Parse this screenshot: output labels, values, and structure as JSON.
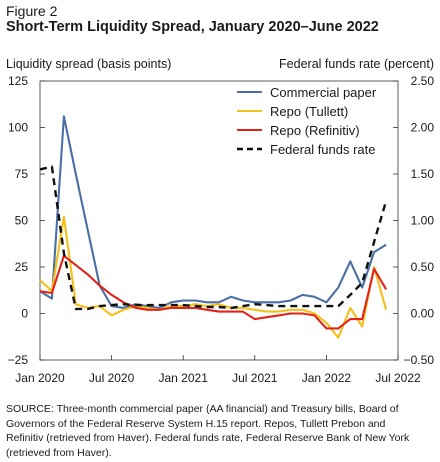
{
  "figure": {
    "label": "Figure 2",
    "title": "Short-Term Liquidity Spread, January 2020–June 2022"
  },
  "chart_data": {
    "type": "line",
    "title": "Short-Term Liquidity Spread, January 2020–June 2022",
    "ylabel": "Liquidity spread (basis points)",
    "y2label": "Federal funds rate (percent)",
    "x_ticks": [
      "Jan 2020",
      "Jul 2020",
      "Jan 2021",
      "Jul 2021",
      "Jan 2022",
      "Jul 2022"
    ],
    "y_ticks": [
      "125",
      "100",
      "75",
      "50",
      "25",
      "0",
      "−25"
    ],
    "y2_ticks": [
      "2.50",
      "2.00",
      "1.50",
      "1.00",
      "0.50",
      "0.00",
      "−0.50"
    ],
    "ylim": [
      -25,
      125
    ],
    "y2lim": [
      -0.5,
      2.5
    ],
    "xlim": [
      "2020-01",
      "2022-07"
    ],
    "legend_position": "top-right",
    "series": [
      {
        "name": "Commercial paper",
        "axis": "left",
        "color": "#4a6fa5",
        "style": "solid",
        "x": [
          "2020-01",
          "2020-02",
          "2020-03",
          "2020-04",
          "2020-05",
          "2020-06",
          "2020-07",
          "2020-08",
          "2020-09",
          "2020-10",
          "2020-11",
          "2020-12",
          "2021-01",
          "2021-02",
          "2021-03",
          "2021-04",
          "2021-05",
          "2021-06",
          "2021-07",
          "2021-08",
          "2021-09",
          "2021-10",
          "2021-11",
          "2021-12",
          "2022-01",
          "2022-02",
          "2022-03",
          "2022-04",
          "2022-05",
          "2022-06"
        ],
        "y": [
          12,
          8,
          106,
          75,
          45,
          15,
          4,
          3,
          5,
          4,
          3,
          6,
          7,
          7,
          6,
          6,
          9,
          7,
          6,
          6,
          6,
          7,
          10,
          9,
          6,
          14,
          28,
          14,
          33,
          37
        ]
      },
      {
        "name": "Repo (Tullett)",
        "axis": "left",
        "color": "#f2bf1b",
        "style": "solid",
        "x": [
          "2020-01",
          "2020-02",
          "2020-03",
          "2020-04",
          "2020-05",
          "2020-06",
          "2020-07",
          "2020-08",
          "2020-09",
          "2020-10",
          "2020-11",
          "2020-12",
          "2021-01",
          "2021-02",
          "2021-03",
          "2021-04",
          "2021-05",
          "2021-06",
          "2021-07",
          "2021-08",
          "2021-09",
          "2021-10",
          "2021-11",
          "2021-12",
          "2022-01",
          "2022-02",
          "2022-03",
          "2022-04",
          "2022-05",
          "2022-06"
        ],
        "y": [
          18,
          12,
          52,
          5,
          3,
          4,
          -1,
          2,
          4,
          3,
          2,
          4,
          4,
          5,
          4,
          5,
          3,
          3,
          2,
          1,
          1,
          2,
          2,
          0,
          -5,
          -13,
          3,
          -7,
          25,
          2
        ]
      },
      {
        "name": "Repo (Refinitiv)",
        "axis": "left",
        "color": "#e2231a",
        "style": "solid",
        "x": [
          "2020-01",
          "2020-02",
          "2020-03",
          "2020-04",
          "2020-05",
          "2020-06",
          "2020-07",
          "2020-08",
          "2020-09",
          "2020-10",
          "2020-11",
          "2020-12",
          "2021-01",
          "2021-02",
          "2021-03",
          "2021-04",
          "2021-05",
          "2021-06",
          "2021-07",
          "2021-08",
          "2021-09",
          "2021-10",
          "2021-11",
          "2021-12",
          "2022-01",
          "2022-02",
          "2022-03",
          "2022-04",
          "2022-05",
          "2022-06"
        ],
        "y": [
          12,
          11,
          31,
          26,
          21,
          15,
          10,
          6,
          3,
          2,
          2,
          3,
          3,
          3,
          2,
          1,
          1,
          1,
          -3,
          -2,
          -1,
          0,
          0,
          -1,
          -8,
          -8,
          -3,
          -3,
          24,
          13
        ]
      },
      {
        "name": "Federal funds rate",
        "axis": "right",
        "color": "#111111",
        "style": "dashed",
        "x": [
          "2020-01",
          "2020-02",
          "2020-03",
          "2020-04",
          "2020-05",
          "2020-06",
          "2020-07",
          "2020-08",
          "2020-09",
          "2020-10",
          "2020-11",
          "2020-12",
          "2021-01",
          "2021-02",
          "2021-03",
          "2021-04",
          "2021-05",
          "2021-06",
          "2021-07",
          "2021-08",
          "2021-09",
          "2021-10",
          "2021-11",
          "2021-12",
          "2022-01",
          "2022-02",
          "2022-03",
          "2022-04",
          "2022-05",
          "2022-06"
        ],
        "y": [
          1.55,
          1.58,
          0.65,
          0.05,
          0.05,
          0.08,
          0.09,
          0.1,
          0.09,
          0.09,
          0.09,
          0.09,
          0.09,
          0.08,
          0.07,
          0.07,
          0.06,
          0.08,
          0.1,
          0.09,
          0.08,
          0.08,
          0.08,
          0.08,
          0.08,
          0.08,
          0.2,
          0.33,
          0.77,
          1.21
        ]
      }
    ]
  },
  "source": [
    "SOURCE: Three-month commercial paper (AA financial) and Treasury bills, Board of",
    "Governors of the Federal Reserve System H.15 report. Repos, Tullett Prebon and",
    "Refinitiv (retrieved from Haver). Federal funds rate, Federal Reserve Bank of New York",
    "(retrieved from Haver)."
  ]
}
